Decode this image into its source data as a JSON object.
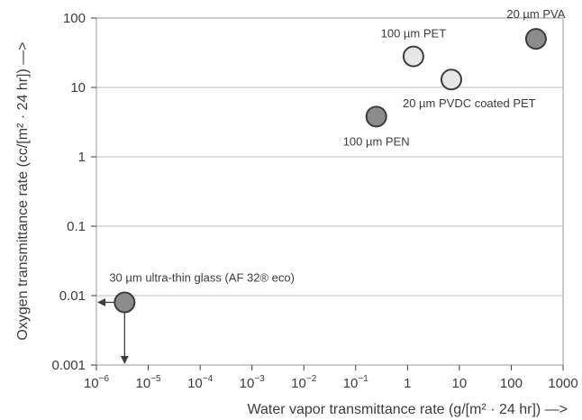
{
  "chart_data": {
    "type": "scatter",
    "xlabel": "Water vapor transmittance rate (g/[m² · 24 hr]) —>",
    "ylabel": "Oxygen transmittance rate (cc/[m² · 24 hr]) —>",
    "x_scale": "log",
    "y_scale": "log",
    "xlim": [
      1e-06,
      1000
    ],
    "ylim": [
      0.001,
      100
    ],
    "grid": "horizontal",
    "x_tick_labels": [
      {
        "base": "10",
        "exp": "-6"
      },
      {
        "base": "10",
        "exp": "-5"
      },
      {
        "base": "10",
        "exp": "-4"
      },
      {
        "base": "10",
        "exp": "-3"
      },
      {
        "base": "10",
        "exp": "-2"
      },
      {
        "base": "10",
        "exp": "-1"
      },
      {
        "base": "1",
        "exp": ""
      },
      {
        "base": "10",
        "exp": ""
      },
      {
        "base": "100",
        "exp": ""
      },
      {
        "base": "1000",
        "exp": ""
      }
    ],
    "y_tick_labels": [
      "100",
      "10",
      "1",
      "0.1",
      "0.01",
      "0.001"
    ],
    "points": [
      {
        "label": "20 µm PVA",
        "x": 300,
        "y": 50,
        "color": "#8c8c8c"
      },
      {
        "label": "100 µm PET",
        "x": 1.3,
        "y": 28,
        "color": "#e6e6e6"
      },
      {
        "label": "20 µm PVDC coated PET",
        "x": 7,
        "y": 13,
        "color": "#e6e6e6"
      },
      {
        "label": "100 µm PEN",
        "x": 0.25,
        "y": 3.8,
        "color": "#8c8c8c"
      },
      {
        "label": "30 µm ultra-thin glass (AF 32® eco)",
        "x": 3.5e-06,
        "y": 0.008,
        "color": "#8c8c8c",
        "upper_limit_arrows": true
      }
    ],
    "colors": {
      "axis": "#3c3c3c",
      "grid": "#bdbdbd",
      "marker_edge": "#3c3c3c"
    }
  }
}
